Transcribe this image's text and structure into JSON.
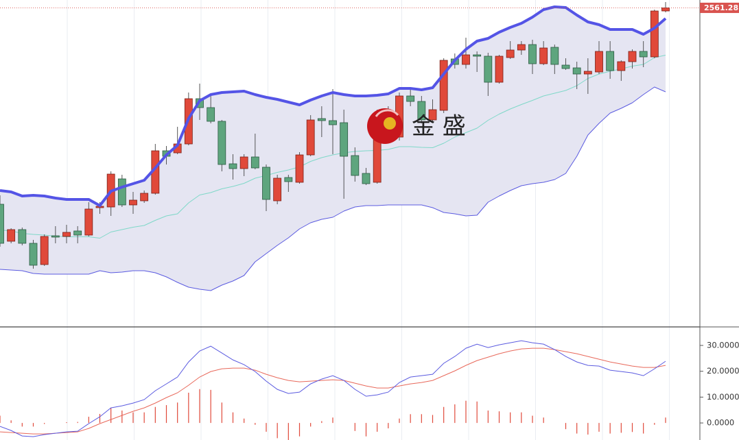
{
  "chart_data": [
    {
      "type": "candlestick",
      "up_color": "#e0493a",
      "down_color": "#5ea57e",
      "ylim": [
        2329,
        2567
      ],
      "current_price": 2561.28,
      "current_price_color": "#d9534f",
      "logo_text": "金 盛",
      "open": [
        2418,
        2391,
        2399.5,
        2389.5,
        2374,
        2395,
        2394.5,
        2398.5,
        2395.5,
        2415.5,
        2416,
        2436.5,
        2417.5,
        2420.5,
        2426,
        2457,
        2455.5,
        2462,
        2495,
        2488.5,
        2478.5,
        2447.5,
        2444,
        2452.5,
        2445,
        2420.5,
        2437.5,
        2434,
        2454,
        2480.5,
        2479,
        2477.5,
        2453.5,
        2440.5,
        2434,
        2472,
        2467,
        2497,
        2493,
        2479.5,
        2486.5,
        2524,
        2520,
        2527,
        2526,
        2507,
        2525,
        2530.5,
        2534.5,
        2520.5,
        2532.5,
        2519.5,
        2517.5,
        2513,
        2514.5,
        2529.5,
        2515.5,
        2522,
        2529.5,
        2525.5,
        2559
      ],
      "high": [
        2424.5,
        2400.5,
        2401,
        2392,
        2396,
        2402,
        2403,
        2402,
        2419.5,
        2419.5,
        2442,
        2439.5,
        2427,
        2428,
        2462,
        2460.5,
        2474.5,
        2499.5,
        2506,
        2497,
        2479.5,
        2454.5,
        2454.5,
        2469.5,
        2447,
        2439.5,
        2439.5,
        2456,
        2483,
        2489.5,
        2502,
        2487,
        2459.5,
        2444.5,
        2487,
        2489.5,
        2499.5,
        2502,
        2497,
        2494.5,
        2524.5,
        2528,
        2539.5,
        2529.5,
        2528.5,
        2527,
        2537,
        2537,
        2538,
        2537,
        2534.5,
        2524.5,
        2522,
        2524.5,
        2537,
        2537,
        2523,
        2531,
        2537,
        2560,
        2565.5
      ],
      "low": [
        2387,
        2389.5,
        2388,
        2371,
        2373,
        2389.5,
        2389.5,
        2389.5,
        2394.5,
        2411,
        2409.5,
        2416,
        2411,
        2419,
        2425,
        2447,
        2454.5,
        2461,
        2479.5,
        2477,
        2442,
        2436,
        2438.5,
        2443.5,
        2413,
        2418,
        2427,
        2433,
        2453,
        2467,
        2454.5,
        2422,
        2434.5,
        2432,
        2433,
        2467,
        2464.5,
        2489.5,
        2477,
        2478,
        2484.5,
        2517,
        2517,
        2514.5,
        2497,
        2506,
        2524,
        2527,
        2513,
        2519.5,
        2513,
        2516,
        2502,
        2498.5,
        2513,
        2509.5,
        2508,
        2517,
        2518,
        2524.5,
        2558
      ],
      "close": [
        2389.5,
        2399.5,
        2389.5,
        2373.5,
        2394.5,
        2394,
        2397.5,
        2395.5,
        2414.5,
        2416.5,
        2440,
        2417.5,
        2421,
        2426,
        2457,
        2453,
        2462,
        2495,
        2488.5,
        2478.5,
        2447,
        2444,
        2452.5,
        2444.5,
        2421.5,
        2437,
        2434.5,
        2454,
        2479.5,
        2479,
        2476,
        2453,
        2439,
        2433,
        2472,
        2479.5,
        2497,
        2493,
        2479.5,
        2487,
        2523,
        2520,
        2527,
        2526,
        2507,
        2526,
        2530.5,
        2534.5,
        2520.5,
        2532,
        2520,
        2517,
        2513,
        2515,
        2529.5,
        2515.5,
        2522,
        2529.5,
        2525.5,
        2559,
        2561.28
      ],
      "bands": {
        "upper": [
          2428,
          2427,
          2424,
          2424.5,
          2424,
          2422.5,
          2421.5,
          2421.5,
          2421.5,
          2417,
          2427.5,
          2430.5,
          2433,
          2435.5,
          2444.5,
          2454,
          2461,
          2480.5,
          2493.5,
          2498,
          2499.5,
          2500,
          2500.5,
          2498,
          2496,
          2494.5,
          2492.5,
          2490.5,
          2494,
          2497,
          2499.5,
          2498,
          2497,
          2497,
          2497.5,
          2498.5,
          2502.5,
          2502.5,
          2501.5,
          2503,
          2513,
          2523,
          2531,
          2537,
          2539,
          2543.5,
          2547,
          2550,
          2554.5,
          2560,
          2562,
          2561.5,
          2556,
          2551,
          2549,
          2545.5,
          2545.5,
          2545.5,
          2542,
          2546.5,
          2553.5
        ],
        "middle": [
          2399.25,
          2398.5,
          2396.75,
          2396,
          2395.5,
          2394.75,
          2394.25,
          2394.25,
          2394.25,
          2393.25,
          2397.75,
          2399.5,
          2401.25,
          2402.5,
          2406.25,
          2409.5,
          2411,
          2419,
          2424.75,
          2426.5,
          2429.25,
          2431,
          2433.25,
          2437,
          2439,
          2441.25,
          2443,
          2445.25,
          2449.25,
          2452,
          2454,
          2455.5,
          2456.5,
          2457,
          2457.25,
          2458,
          2460,
          2460,
          2459.5,
          2459.25,
          2462.5,
          2467,
          2470.25,
          2473.5,
          2479.25,
          2483.75,
          2487.5,
          2490.75,
          2493.75,
          2497,
          2499,
          2501,
          2504.5,
          2509.75,
          2513,
          2515,
          2516.75,
          2518.75,
          2520,
          2525,
          2526.75
        ],
        "lower": [
          2370.5,
          2370,
          2369.5,
          2367.5,
          2367,
          2367,
          2367,
          2367,
          2367,
          2369.5,
          2368,
          2368.5,
          2369.5,
          2369.5,
          2368,
          2365,
          2361,
          2357.5,
          2356,
          2355,
          2359,
          2362,
          2366,
          2376,
          2382,
          2388,
          2393.5,
          2400,
          2404.5,
          2407,
          2408.5,
          2413,
          2416,
          2417,
          2417,
          2417.5,
          2417.5,
          2417.5,
          2417.5,
          2415.5,
          2412,
          2411,
          2409.5,
          2410,
          2419.5,
          2424,
          2428,
          2431.5,
          2433,
          2434,
          2436,
          2440.5,
          2453,
          2468.5,
          2477,
          2484.5,
          2488,
          2492,
          2498,
          2503.5,
          2500
        ]
      },
      "band_colors": {
        "upper": "#5454e6",
        "middle": "#7ed8c8",
        "lower": "#5a5ae0",
        "fill": "#e5e5f2"
      }
    },
    {
      "type": "macd",
      "ylim": [
        -6.6,
        36.9
      ],
      "yticks": [
        {
          "value": 30,
          "label": "30.0000"
        },
        {
          "value": 20,
          "label": "20.0000"
        },
        {
          "value": 10,
          "label": "10.0000"
        },
        {
          "value": 0,
          "label": "0.0000"
        }
      ],
      "dif_color": "#5a5ae0",
      "dea_color": "#e8685a",
      "hist_color": "#e0493a",
      "dif": [
        -1.33,
        -2.92,
        -5.04,
        -5.31,
        -4.51,
        -3.98,
        -3.45,
        -3.18,
        -0.27,
        2.39,
        5.84,
        6.63,
        7.69,
        9.02,
        12.47,
        15.12,
        17.77,
        23.61,
        27.85,
        29.71,
        27.06,
        24.4,
        22.55,
        19.89,
        16.18,
        12.99,
        11.41,
        11.94,
        15.12,
        16.98,
        18.3,
        16.45,
        12.99,
        10.34,
        10.88,
        11.94,
        15.65,
        17.77,
        18.3,
        18.83,
        23.08,
        25.73,
        28.91,
        30.5,
        29.18,
        30.24,
        31.03,
        31.83,
        31.03,
        30.5,
        28.38,
        25.73,
        23.61,
        22.28,
        22.02,
        20.42,
        19.89,
        19.36,
        18.3,
        20.95,
        23.87
      ],
      "dea": [
        -3.45,
        -3.71,
        -3.98,
        -4.24,
        -4.24,
        -3.98,
        -3.71,
        -3.45,
        -2.12,
        -0.27,
        1.33,
        2.92,
        4.51,
        5.84,
        7.69,
        9.81,
        11.67,
        14.59,
        17.77,
        19.89,
        20.95,
        21.22,
        21.22,
        20.42,
        18.83,
        17.51,
        16.45,
        15.92,
        16.18,
        16.45,
        16.71,
        16.45,
        15.38,
        14.32,
        13.53,
        13.53,
        14.32,
        15.12,
        15.65,
        16.45,
        18.3,
        20.16,
        22.28,
        24.14,
        25.46,
        26.79,
        27.85,
        28.65,
        28.91,
        28.91,
        28.38,
        27.59,
        26.79,
        25.73,
        24.67,
        23.61,
        22.81,
        22.02,
        21.49,
        21.49,
        22.28
      ],
      "hist": [
        2.8,
        1.0,
        -1.4,
        -1.4,
        -0.4,
        0,
        0.3,
        0.4,
        2.4,
        3.5,
        5.9,
        4.8,
        4.1,
        4.1,
        6.2,
        6.9,
        7.9,
        11.7,
        13.1,
        12.8,
        7.9,
        4.1,
        1.7,
        -0.7,
        -3.4,
        -5.9,
        -6.6,
        -5.2,
        -1.4,
        0.7,
        2.1,
        0,
        -3.1,
        -5.2,
        -3.4,
        -2.1,
        1.7,
        3.4,
        3.4,
        3.1,
        6.2,
        7.2,
        8.6,
        8.3,
        4.8,
        4.5,
        4.1,
        4.1,
        2.8,
        2.1,
        0,
        -2.4,
        -4.1,
        -4.5,
        -3.4,
        -4.1,
        -3.8,
        -3.5,
        -4.1,
        -0.7,
        2.1
      ]
    }
  ]
}
